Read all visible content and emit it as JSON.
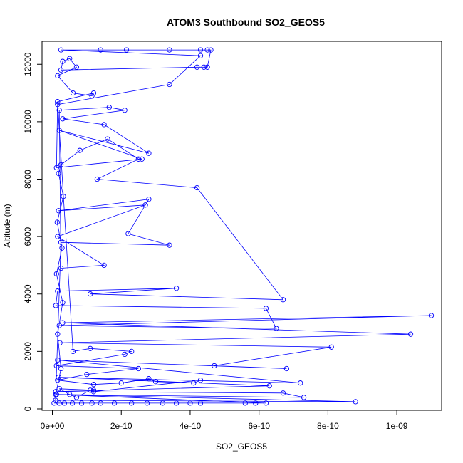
{
  "chart_data": {
    "type": "line",
    "title": "ATOM3 Southbound SO2_GEOS5",
    "xlabel": "SO2_GEOS5",
    "ylabel": "Altitude (m)",
    "xlim": [
      -3e-11,
      1.13e-09
    ],
    "ylim": [
      -50,
      12800
    ],
    "x_ticks": [
      0,
      2e-10,
      4e-10,
      6e-10,
      8e-10,
      1e-09
    ],
    "x_tick_labels": [
      "0e+00",
      "2e-10",
      "4e-10",
      "6e-10",
      "8e-10",
      "1e-09"
    ],
    "y_ticks": [
      0,
      2000,
      4000,
      6000,
      8000,
      10000,
      12000
    ],
    "y_tick_labels": [
      "0",
      "2000",
      "4000",
      "6000",
      "8000",
      "10000",
      "12000"
    ],
    "grid": false,
    "series": [
      {
        "color": "#0000ff",
        "marker": "open-circle",
        "points": [
          [
            5e-12,
            200
          ],
          [
            2e-11,
            200
          ],
          [
            3.5e-11,
            200
          ],
          [
            5.8e-11,
            200
          ],
          [
            8.5e-11,
            200
          ],
          [
            1.15e-10,
            200
          ],
          [
            1.4e-10,
            200
          ],
          [
            1.8e-10,
            200
          ],
          [
            2.3e-10,
            200
          ],
          [
            2.75e-10,
            200
          ],
          [
            3.2e-10,
            200
          ],
          [
            3.6e-10,
            200
          ],
          [
            4e-10,
            200
          ],
          [
            4.3e-10,
            200
          ],
          [
            5.6e-10,
            200
          ],
          [
            5.9e-10,
            200
          ],
          [
            6.2e-10,
            200
          ],
          [
            1e-11,
            500
          ],
          [
            2.5e-11,
            1400
          ],
          [
            1.5e-11,
            2600
          ],
          [
            3e-11,
            3700
          ],
          [
            1.2e-11,
            4700
          ],
          [
            2.8e-11,
            5600
          ],
          [
            1.4e-11,
            6500
          ],
          [
            3.2e-11,
            7400
          ],
          [
            1.8e-11,
            8200
          ],
          [
            2.5e-11,
            8500
          ],
          [
            8e-11,
            9000
          ],
          [
            1.6e-10,
            9400
          ],
          [
            2.5e-10,
            8700
          ],
          [
            1.3e-10,
            8000
          ],
          [
            4.2e-10,
            7700
          ],
          [
            6.7e-10,
            3800
          ],
          [
            1.1e-10,
            4000
          ],
          [
            3.6e-10,
            4200
          ],
          [
            1.5e-11,
            4100
          ],
          [
            1e-11,
            3600
          ],
          [
            6.2e-10,
            3500
          ],
          [
            6.5e-10,
            2800
          ],
          [
            2e-11,
            2900
          ],
          [
            1.1e-09,
            3250
          ],
          [
            3e-11,
            3000
          ],
          [
            1.04e-09,
            2600
          ],
          [
            2.2e-11,
            2300
          ],
          [
            8.1e-10,
            2150
          ],
          [
            4.7e-10,
            1500
          ],
          [
            6.8e-10,
            1400
          ],
          [
            1.5e-11,
            1700
          ],
          [
            7.2e-10,
            900
          ],
          [
            1.8e-11,
            1100
          ],
          [
            6.3e-10,
            800
          ],
          [
            1e-11,
            600
          ],
          [
            6.7e-10,
            550
          ],
          [
            7.3e-10,
            400
          ],
          [
            1.2e-11,
            500
          ],
          [
            8.8e-10,
            250
          ],
          [
            9e-12,
            300
          ],
          [
            2.5e-11,
            5800
          ],
          [
            3.4e-10,
            5700
          ],
          [
            2.2e-10,
            6100
          ],
          [
            2.8e-10,
            7300
          ],
          [
            1.8e-11,
            6900
          ],
          [
            2.7e-10,
            7100
          ],
          [
            1.5e-11,
            6000
          ],
          [
            1.5e-10,
            5000
          ],
          [
            2.5e-11,
            4900
          ],
          [
            2e-11,
            10400
          ],
          [
            1.65e-10,
            10500
          ],
          [
            2.1e-10,
            10400
          ],
          [
            3e-11,
            10100
          ],
          [
            1.5e-10,
            9900
          ],
          [
            2.8e-10,
            8900
          ],
          [
            2e-11,
            9700
          ],
          [
            2.6e-10,
            8700
          ],
          [
            1.2e-11,
            8400
          ],
          [
            1.5e-11,
            10600
          ],
          [
            3.4e-10,
            11300
          ],
          [
            4.3e-10,
            12300
          ],
          [
            2.5e-11,
            12500
          ],
          [
            1.4e-10,
            12500
          ],
          [
            2.15e-10,
            12500
          ],
          [
            3.4e-10,
            12500
          ],
          [
            4.3e-10,
            12500
          ],
          [
            4.5e-10,
            12500
          ],
          [
            4.6e-10,
            12500
          ],
          [
            4.5e-10,
            11900
          ],
          [
            4.4e-10,
            11900
          ],
          [
            4.2e-10,
            11900
          ],
          [
            2.5e-11,
            11800
          ],
          [
            3e-11,
            12100
          ],
          [
            5e-11,
            12200
          ],
          [
            7e-11,
            11900
          ],
          [
            1.5e-11,
            11600
          ],
          [
            6e-11,
            11000
          ],
          [
            1.15e-10,
            10900
          ],
          [
            1.2e-10,
            11000
          ],
          [
            1.5e-11,
            10700
          ],
          [
            6e-11,
            2000
          ],
          [
            1.1e-10,
            2100
          ],
          [
            2.3e-10,
            2000
          ],
          [
            2.1e-10,
            1900
          ],
          [
            1.2e-11,
            1500
          ],
          [
            2.5e-10,
            1400
          ],
          [
            1e-10,
            1200
          ],
          [
            1.5e-11,
            1000
          ],
          [
            1.2e-10,
            850
          ],
          [
            2e-10,
            900
          ],
          [
            2.8e-10,
            1050
          ],
          [
            3e-10,
            950
          ],
          [
            4.1e-10,
            900
          ],
          [
            4.3e-10,
            1000
          ],
          [
            1.2e-10,
            600
          ],
          [
            1.2e-10,
            650
          ],
          [
            2e-11,
            700
          ],
          [
            5e-11,
            500
          ],
          [
            7e-11,
            400
          ],
          [
            1.1e-10,
            650
          ]
        ]
      }
    ]
  }
}
